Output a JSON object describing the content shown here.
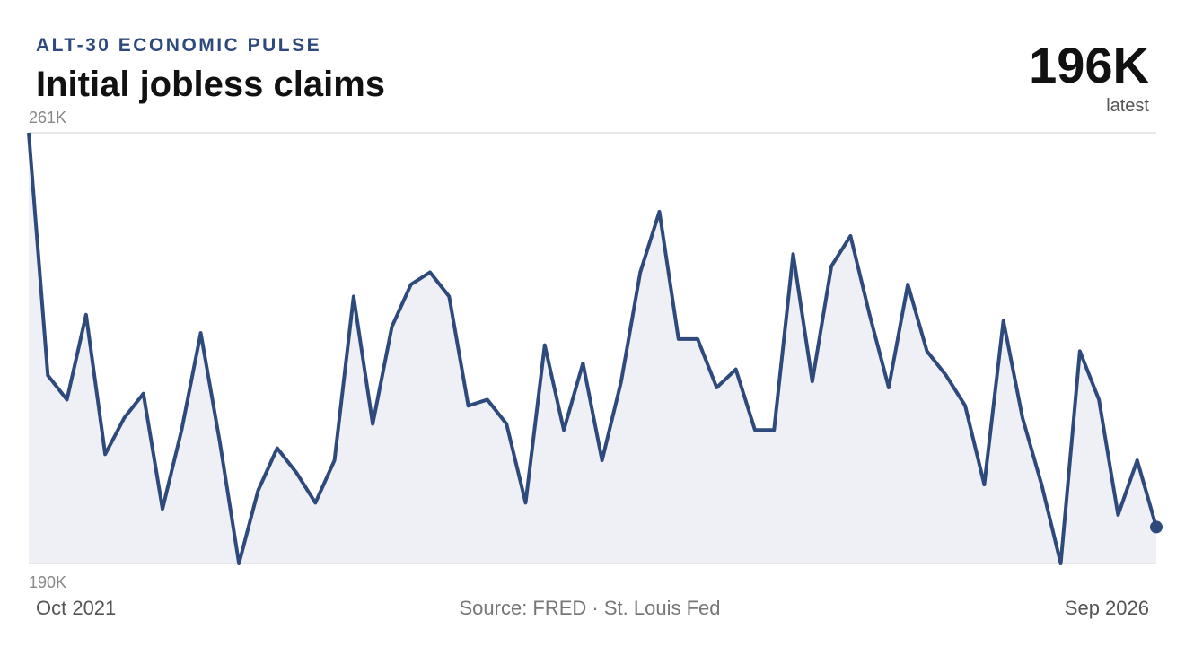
{
  "chart_data": {
    "type": "line",
    "kicker": "ALT-30 ECONOMIC PULSE",
    "title": "Initial jobless claims",
    "latest": {
      "value": 196,
      "label": "196K",
      "caption": "latest"
    },
    "source": "Source: FRED · St. Louis Fed",
    "categories": [
      "Oct 2021",
      null,
      null,
      null,
      null,
      null,
      null,
      null,
      null,
      null,
      null,
      null,
      null,
      null,
      null,
      null,
      null,
      null,
      null,
      null,
      null,
      null,
      null,
      null,
      null,
      null,
      null,
      null,
      null,
      null,
      null,
      null,
      null,
      null,
      null,
      null,
      null,
      null,
      null,
      null,
      null,
      null,
      null,
      null,
      null,
      null,
      null,
      null,
      null,
      null,
      null,
      null,
      null,
      null,
      null,
      null,
      null,
      null,
      null,
      "Sep 2026"
    ],
    "values": [
      261,
      221,
      217,
      231,
      208,
      214,
      218,
      199,
      212,
      228,
      210,
      190,
      202,
      209,
      205,
      200,
      207,
      234,
      213,
      229,
      236,
      238,
      234,
      216,
      217,
      213,
      200,
      226,
      212,
      223,
      207,
      220,
      238,
      248,
      227,
      227,
      219,
      222,
      212,
      212,
      241,
      220,
      239,
      244,
      231,
      219,
      236,
      225,
      221,
      216,
      203,
      230,
      214,
      203,
      190,
      225,
      217,
      198,
      207,
      196
    ],
    "color": "#2e4a7d",
    "fill": "#eef0f5",
    "ylim": [
      190,
      261
    ],
    "yticks": [
      {
        "value": 190,
        "label": "190K"
      },
      {
        "value": 261,
        "label": "261K"
      }
    ],
    "grid": true
  }
}
